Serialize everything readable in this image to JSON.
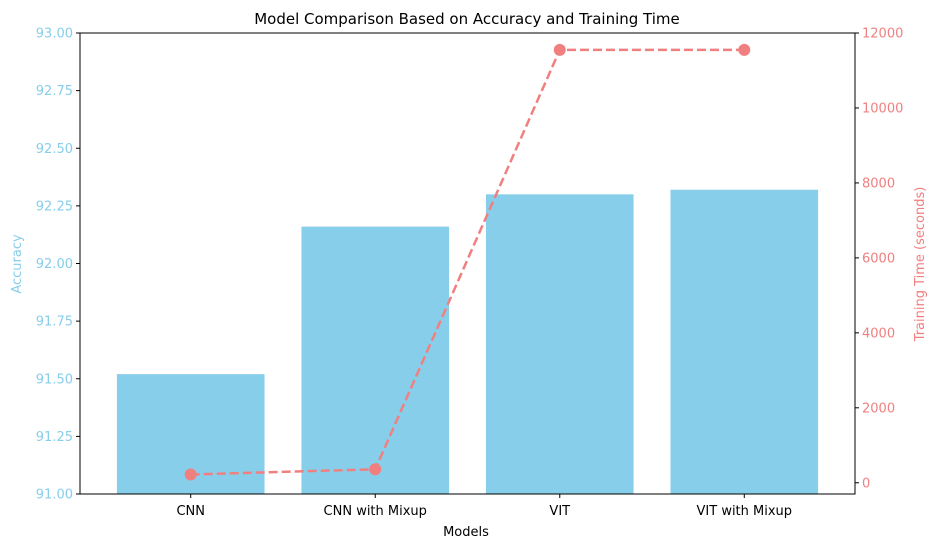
{
  "chart_data": {
    "type": "bar",
    "title": "Model Comparison Based on Accuracy and Training Time",
    "xlabel": "Models",
    "categories": [
      "CNN",
      "CNN with Mixup",
      "VIT",
      "VIT with Mixup"
    ],
    "bar_series": {
      "axis_label": "Accuracy",
      "values": [
        91.52,
        92.16,
        92.3,
        92.32
      ],
      "color": "#87CEEB",
      "ylim": [
        91.0,
        93.0
      ],
      "ticks": [
        "91.00",
        "91.25",
        "91.50",
        "91.75",
        "92.00",
        "92.25",
        "92.50",
        "92.75",
        "93.00"
      ]
    },
    "line_series": {
      "type": "line",
      "axis_label": "Training Time (seconds)",
      "values": [
        220,
        360,
        11550,
        11550
      ],
      "color": "#F08080",
      "line_style": "dashed",
      "marker": "circle",
      "ylim": [
        -300,
        12000
      ],
      "ticks": [
        "0",
        "2000",
        "4000",
        "6000",
        "8000",
        "10000",
        "12000"
      ]
    },
    "grid": false,
    "legend": "none"
  }
}
